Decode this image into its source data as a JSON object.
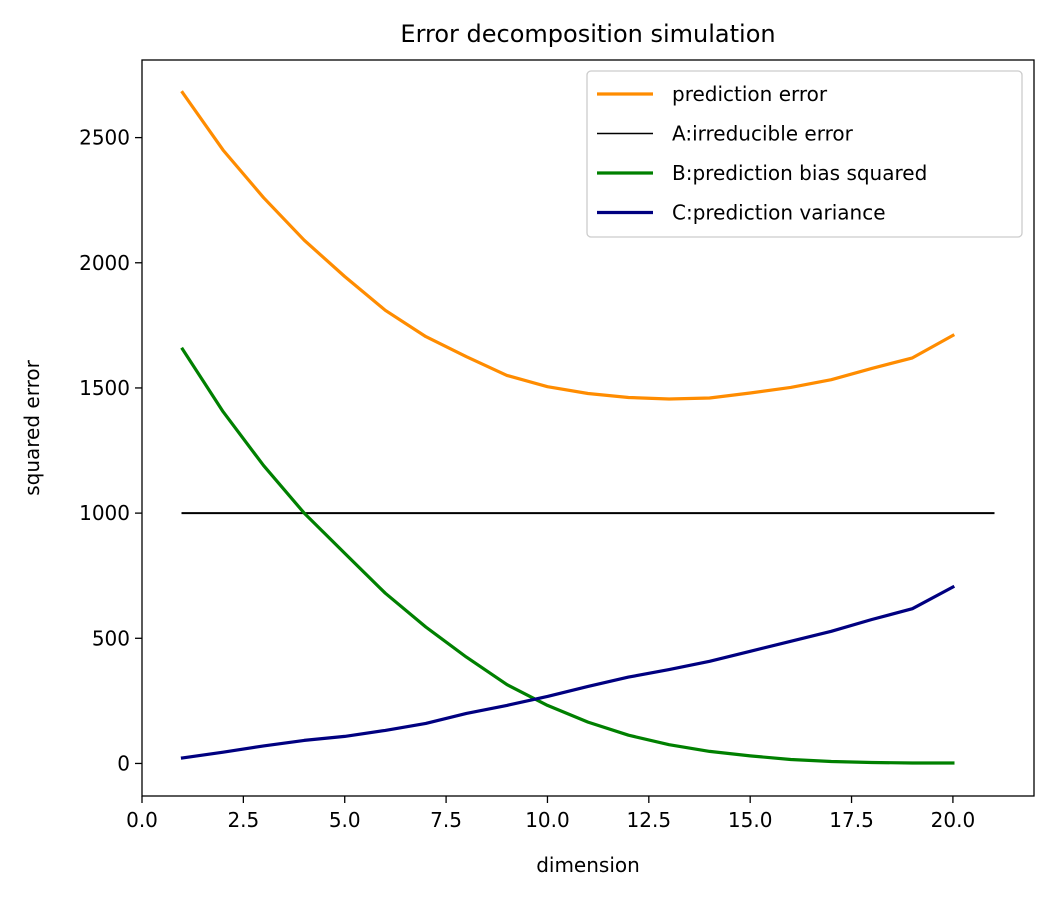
{
  "chart_data": {
    "type": "line",
    "title": "Error decomposition simulation",
    "xlabel": "dimension",
    "ylabel": "squared error",
    "xlim": [
      0,
      22
    ],
    "ylim": [
      -130,
      2810
    ],
    "xticks": [
      0.0,
      2.5,
      5.0,
      7.5,
      10.0,
      12.5,
      15.0,
      17.5,
      20.0
    ],
    "xtick_labels": [
      "0.0",
      "2.5",
      "5.0",
      "7.5",
      "10.0",
      "12.5",
      "15.0",
      "17.5",
      "20.0"
    ],
    "yticks": [
      0,
      500,
      1000,
      1500,
      2000,
      2500
    ],
    "ytick_labels": [
      "0",
      "500",
      "1000",
      "1500",
      "2000",
      "2500"
    ],
    "grid": false,
    "legend_position": "top-right",
    "series": [
      {
        "name": "prediction error",
        "color": "#ff8c00",
        "x": [
          1,
          2,
          3,
          4,
          5,
          6,
          7,
          8,
          9,
          10,
          11,
          12,
          13,
          14,
          15,
          16,
          17,
          18,
          19,
          20
        ],
        "values": [
          2680,
          2450,
          2260,
          2090,
          1945,
          1810,
          1705,
          1625,
          1550,
          1505,
          1478,
          1462,
          1456,
          1460,
          1480,
          1502,
          1533,
          1578,
          1620,
          1710
        ]
      },
      {
        "name": "A:irreducible error",
        "color": "#000000",
        "x": [
          1,
          21
        ],
        "values": [
          1000,
          1000
        ]
      },
      {
        "name": "B:prediction bias squared",
        "color": "#008000",
        "x": [
          1,
          2,
          3,
          4,
          5,
          6,
          7,
          8,
          9,
          10,
          11,
          12,
          13,
          14,
          15,
          16,
          17,
          18,
          19,
          20
        ],
        "values": [
          1655,
          1405,
          1190,
          1000,
          840,
          680,
          545,
          425,
          315,
          232,
          165,
          113,
          75,
          48,
          30,
          16,
          8,
          4,
          2,
          2
        ]
      },
      {
        "name": "C:prediction variance",
        "color": "#000080",
        "x": [
          1,
          2,
          3,
          4,
          5,
          6,
          7,
          8,
          9,
          10,
          11,
          12,
          13,
          14,
          15,
          16,
          17,
          18,
          19,
          20
        ],
        "values": [
          22,
          45,
          70,
          92,
          108,
          132,
          160,
          200,
          232,
          268,
          308,
          345,
          375,
          408,
          448,
          488,
          528,
          575,
          618,
          705
        ]
      }
    ]
  }
}
